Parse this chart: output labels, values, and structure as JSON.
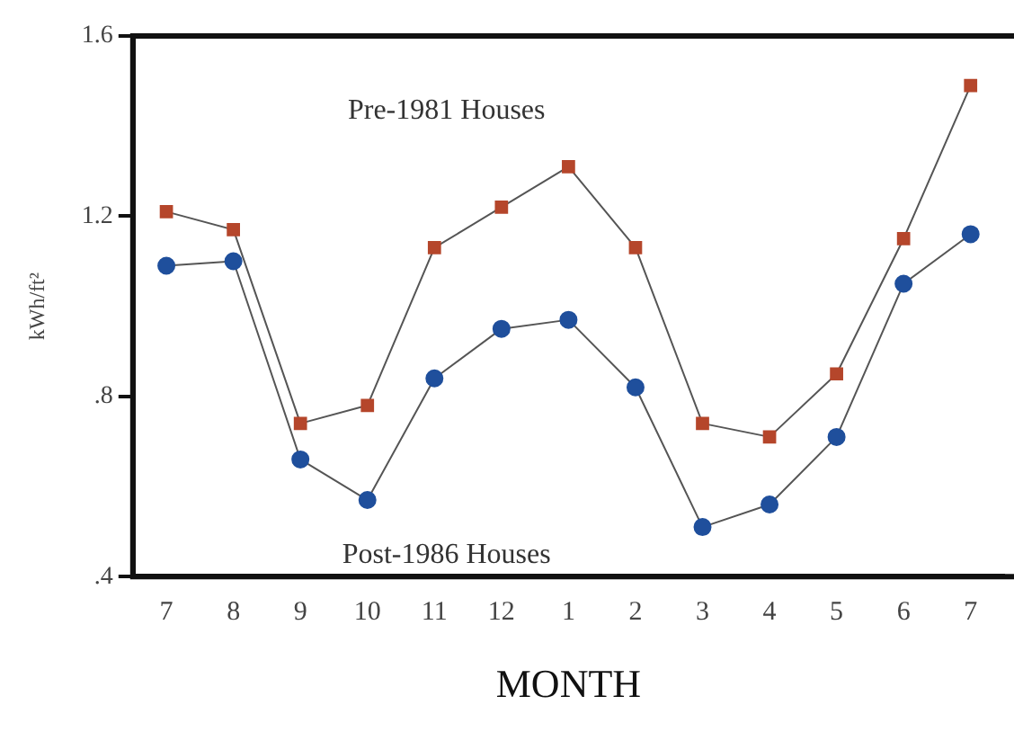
{
  "chart_data": {
    "type": "line",
    "xlabel": "MONTH",
    "ylabel": "kWh/ft²",
    "categories": [
      "7",
      "8",
      "9",
      "10",
      "11",
      "12",
      "1",
      "2",
      "3",
      "4",
      "5",
      "6",
      "7"
    ],
    "series": [
      {
        "name": "Pre-1981 Houses",
        "color": "#b5462b",
        "marker": "square",
        "values": [
          1.21,
          1.17,
          0.74,
          0.78,
          1.13,
          1.22,
          1.31,
          1.13,
          0.74,
          0.71,
          0.85,
          1.15,
          1.49
        ]
      },
      {
        "name": "Post-1986 Houses",
        "color": "#1f4f9c",
        "marker": "circle",
        "values": [
          1.09,
          1.1,
          0.66,
          0.57,
          0.84,
          0.95,
          0.97,
          0.82,
          0.51,
          0.56,
          0.71,
          1.05,
          1.16
        ]
      }
    ],
    "ylim": [
      0.4,
      1.6
    ],
    "yticks": [
      {
        "value": 0.4,
        "label": ".4"
      },
      {
        "value": 0.8,
        "label": ".8"
      },
      1.2,
      1.6
    ],
    "grid": false,
    "legend": false,
    "line_style": "solid"
  }
}
